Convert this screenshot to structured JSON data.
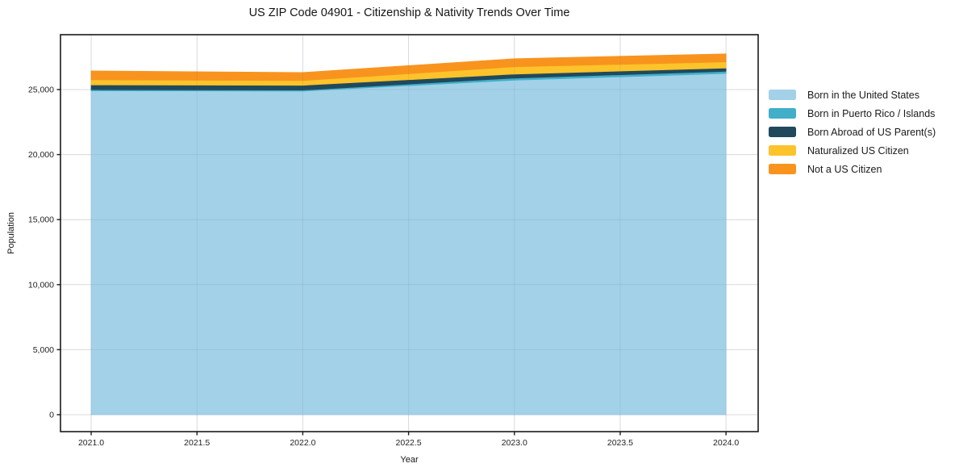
{
  "page": {
    "background": "#ffffff",
    "text_color": "#151515"
  },
  "chart_data": {
    "type": "area",
    "stacked": true,
    "title": "US ZIP Code 04901 - Citizenship & Nativity Trends Over Time",
    "xlabel": "Year",
    "ylabel": "Population",
    "x": [
      2021,
      2022,
      2023,
      2024
    ],
    "series": [
      {
        "name": "Born in the United States",
        "color": "#A3D1E8",
        "values": [
          24900,
          24880,
          25720,
          26240
        ]
      },
      {
        "name": "Born in Puerto Rico / Islands",
        "color": "#41AFC9",
        "values": [
          90,
          80,
          160,
          165
        ]
      },
      {
        "name": "Born Abroad of US Parent(s)",
        "color": "#20495C",
        "values": [
          370,
          370,
          310,
          250
        ]
      },
      {
        "name": "Naturalized US Citizen",
        "color": "#FDC32B",
        "values": [
          390,
          360,
          560,
          470
        ]
      },
      {
        "name": "Not a US Citizen",
        "color": "#F8941E",
        "values": [
          680,
          620,
          620,
          620
        ]
      }
    ],
    "x_ticks": {
      "values": [
        2021,
        2021.5,
        2022,
        2022.5,
        2023,
        2023.5,
        2024
      ],
      "labels": [
        "2021.0",
        "2021.5",
        "2022.0",
        "2022.5",
        "2023.0",
        "2023.5",
        "2024.0"
      ]
    },
    "y_ticks": {
      "values": [
        0,
        5000,
        10000,
        15000,
        20000,
        25000
      ],
      "labels": [
        "0",
        "5,000",
        "10,000",
        "15,000",
        "20,000",
        "25,000"
      ]
    },
    "xlim": [
      2020.855,
      2024.152
    ],
    "ylim": [
      -1303,
      29218
    ],
    "grid": true,
    "grid_color": "#e9e9e9",
    "spine_color": "#1a1a1a",
    "legend_position": "right-outside"
  }
}
